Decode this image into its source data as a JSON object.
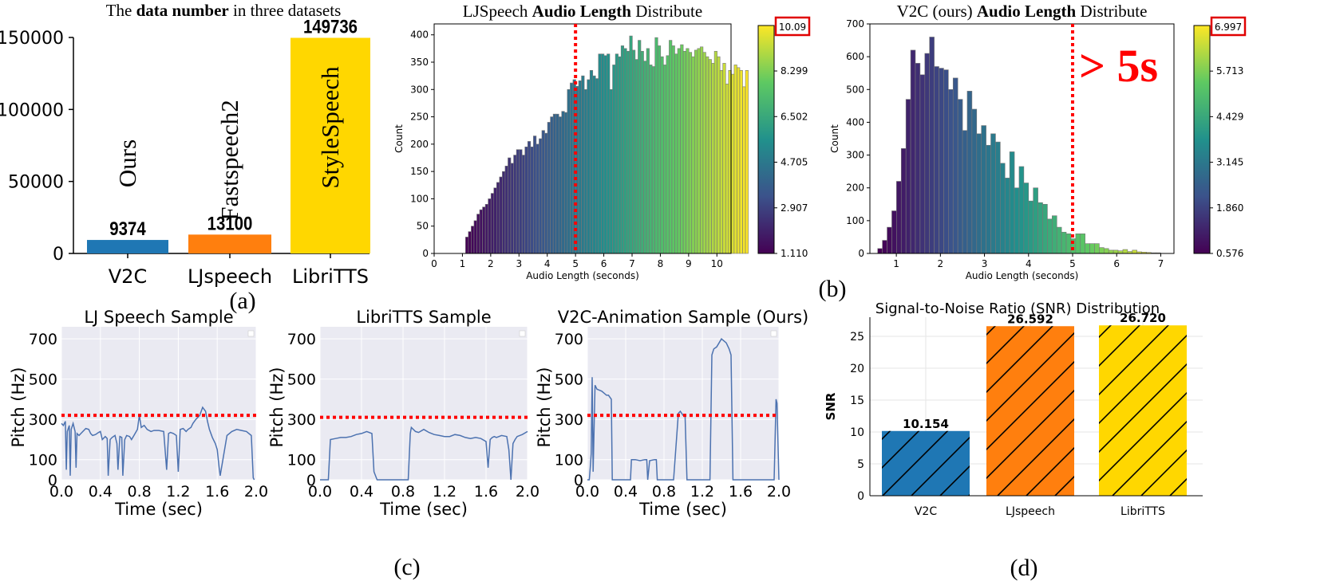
{
  "panels": {
    "a": "(a)",
    "b": "(b)",
    "c": "(c)",
    "d": "(d)"
  },
  "chart_data": [
    {
      "id": "a",
      "type": "bar",
      "title_pre": "The ",
      "title_bold": "data number",
      "title_post": " in three datasets",
      "categories": [
        "V2C",
        "LJspeech",
        "LibriTTS"
      ],
      "values": [
        9374,
        13100,
        149736
      ],
      "value_labels": [
        "9374",
        "13100",
        "149736"
      ],
      "bar_names": [
        "Ours",
        "Fastspeech2",
        "StyleSpeech"
      ],
      "colors": [
        "#1f77b4",
        "#ff7f0e",
        "#ffd700"
      ],
      "ylim": [
        0,
        150000
      ],
      "yticks": [
        0,
        50000,
        100000,
        150000
      ],
      "ytick_labels": [
        "0",
        "50000",
        "100000",
        "150000"
      ]
    },
    {
      "id": "lj_hist",
      "type": "bar",
      "title_pre": "LJSpeech ",
      "title_bold": "Audio Length",
      "title_post": " Distribute",
      "xlabel": "Audio Length (seconds)",
      "ylabel": "Count",
      "xlim": [
        0,
        10.5
      ],
      "ylim": [
        0,
        420
      ],
      "xticks": [
        0,
        1,
        2,
        3,
        4,
        5,
        6,
        7,
        8,
        9,
        10
      ],
      "xtick_labels": [
        "0",
        "1",
        "2",
        "3",
        "4",
        "5",
        "6",
        "7",
        "8",
        "9",
        "10"
      ],
      "yticks": [
        0,
        50,
        100,
        150,
        200,
        250,
        300,
        350,
        400
      ],
      "ytick_labels": [
        "0",
        "50",
        "100",
        "150",
        "200",
        "250",
        "300",
        "350",
        "400"
      ],
      "bin_start": 1.11,
      "bin_width": 0.1,
      "counts": [
        30,
        40,
        50,
        60,
        72,
        80,
        85,
        90,
        100,
        110,
        120,
        130,
        140,
        150,
        160,
        175,
        165,
        180,
        190,
        190,
        180,
        195,
        205,
        195,
        215,
        200,
        210,
        225,
        220,
        240,
        250,
        255,
        255,
        250,
        260,
        258,
        300,
        312,
        318,
        306,
        316,
        325,
        300,
        318,
        335,
        325,
        320,
        365,
        365,
        362,
        365,
        300,
        345,
        365,
        360,
        380,
        375,
        370,
        398,
        372,
        355,
        390,
        370,
        352,
        375,
        345,
        342,
        395,
        380,
        360,
        345,
        362,
        390,
        380,
        365,
        375,
        382,
        370,
        375,
        368,
        360,
        372,
        375,
        378,
        368,
        360,
        355,
        348,
        370,
        360,
        335,
        348,
        310,
        335,
        328,
        345,
        340,
        335,
        305,
        335
      ],
      "cutoff": 5,
      "colorbar_ticks": [
        1.11,
        2.907,
        4.705,
        6.502,
        8.299
      ],
      "colorbar_tick_labels": [
        "1.110",
        "2.907",
        "4.705",
        "6.502",
        "8.299"
      ],
      "colorbar_max": "10.09"
    },
    {
      "id": "v2c_hist",
      "type": "bar",
      "title_pre": "V2C (ours) ",
      "title_bold": "Audio Length",
      "title_post": " Distribute",
      "xlabel": "Audio Length (seconds)",
      "ylabel": "Count",
      "xlim": [
        0.4,
        7.3
      ],
      "ylim": [
        0,
        700
      ],
      "xticks": [
        1,
        2,
        3,
        4,
        5,
        6,
        7
      ],
      "xtick_labels": [
        "1",
        "2",
        "3",
        "4",
        "5",
        "6",
        "7"
      ],
      "yticks": [
        0,
        100,
        200,
        300,
        400,
        500,
        600,
        700
      ],
      "ytick_labels": [
        "0",
        "100",
        "200",
        "300",
        "400",
        "500",
        "600",
        "700"
      ],
      "bin_start": 0.576,
      "bin_width": 0.107,
      "counts": [
        15,
        40,
        80,
        130,
        220,
        320,
        470,
        620,
        580,
        545,
        610,
        660,
        570,
        565,
        560,
        500,
        535,
        470,
        375,
        495,
        440,
        365,
        390,
        330,
        365,
        340,
        275,
        230,
        310,
        200,
        265,
        215,
        160,
        200,
        155,
        150,
        105,
        115,
        80,
        65,
        60,
        45,
        60,
        60,
        30,
        30,
        30,
        18,
        15,
        10,
        10,
        8,
        12,
        6,
        10,
        5,
        4,
        3,
        2,
        2
      ],
      "cutoff": 5,
      "annotation": "> 5s",
      "colorbar_ticks": [
        0.576,
        1.86,
        3.145,
        4.429,
        5.713
      ],
      "colorbar_tick_labels": [
        "0.576",
        "1.860",
        "3.145",
        "4.429",
        "5.713"
      ],
      "colorbar_max": "6.997"
    },
    {
      "id": "pitch_lj",
      "type": "line",
      "title": "LJ Speech Sample",
      "xlabel": "Time (sec)",
      "ylabel": "Pitch (Hz)",
      "xlim": [
        0,
        2.0
      ],
      "ylim": [
        0,
        760
      ],
      "xticks": [
        0,
        0.4,
        0.8,
        1.2,
        1.6,
        2.0
      ],
      "xtick_labels": [
        "0.0",
        "0.4",
        "0.8",
        "1.2",
        "1.6",
        "2.0"
      ],
      "yticks": [
        0,
        100,
        300,
        500,
        700
      ],
      "ytick_labels": [
        "0",
        "100",
        "300",
        "500",
        "700"
      ],
      "threshold": 320,
      "x": [
        0.0,
        0.02,
        0.04,
        0.05,
        0.06,
        0.08,
        0.09,
        0.1,
        0.12,
        0.14,
        0.15,
        0.16,
        0.18,
        0.2,
        0.22,
        0.25,
        0.28,
        0.3,
        0.32,
        0.35,
        0.38,
        0.4,
        0.42,
        0.45,
        0.47,
        0.48,
        0.5,
        0.52,
        0.55,
        0.57,
        0.58,
        0.6,
        0.62,
        0.63,
        0.65,
        0.67,
        0.7,
        0.72,
        0.75,
        0.78,
        0.8,
        0.82,
        0.85,
        0.88,
        0.92,
        0.95,
        1.0,
        1.05,
        1.08,
        1.1,
        1.12,
        1.15,
        1.18,
        1.2,
        1.22,
        1.25,
        1.28,
        1.3,
        1.33,
        1.35,
        1.38,
        1.42,
        1.45,
        1.48,
        1.5,
        1.52,
        1.55,
        1.58,
        1.6,
        1.62,
        1.63,
        1.7,
        1.75,
        1.8,
        1.85,
        1.9,
        1.95,
        1.97,
        1.98
      ],
      "y": [
        280,
        270,
        290,
        50,
        240,
        270,
        20,
        250,
        280,
        240,
        60,
        230,
        220,
        230,
        240,
        255,
        250,
        230,
        220,
        225,
        235,
        240,
        200,
        215,
        205,
        20,
        200,
        210,
        220,
        180,
        50,
        215,
        210,
        20,
        200,
        220,
        215,
        200,
        225,
        250,
        320,
        260,
        270,
        250,
        240,
        245,
        245,
        240,
        50,
        230,
        235,
        230,
        220,
        40,
        250,
        255,
        240,
        250,
        260,
        280,
        300,
        320,
        360,
        340,
        290,
        250,
        210,
        180,
        150,
        60,
        20,
        220,
        240,
        250,
        245,
        240,
        220,
        10,
        0
      ]
    },
    {
      "id": "pitch_libri",
      "type": "line",
      "title": "LibriTTS Sample",
      "xlabel": "Time (sec)",
      "ylabel": "Pitch (Hz)",
      "xlim": [
        0,
        2.0
      ],
      "ylim": [
        0,
        760
      ],
      "xticks": [
        0,
        0.4,
        0.8,
        1.2,
        1.6,
        2.0
      ],
      "xtick_labels": [
        "0.0",
        "0.4",
        "0.8",
        "1.2",
        "1.6",
        "2.0"
      ],
      "yticks": [
        0,
        100,
        300,
        500,
        700
      ],
      "ytick_labels": [
        "0",
        "100",
        "300",
        "500",
        "700"
      ],
      "threshold": 310,
      "x": [
        0.0,
        0.03,
        0.05,
        0.08,
        0.1,
        0.15,
        0.2,
        0.25,
        0.3,
        0.35,
        0.4,
        0.45,
        0.5,
        0.52,
        0.55,
        0.6,
        0.65,
        0.7,
        0.75,
        0.8,
        0.85,
        0.87,
        0.88,
        0.92,
        0.95,
        1.0,
        1.05,
        1.1,
        1.15,
        1.2,
        1.25,
        1.3,
        1.35,
        1.4,
        1.45,
        1.5,
        1.55,
        1.6,
        1.62,
        1.64,
        1.66,
        1.68,
        1.7,
        1.75,
        1.8,
        1.82,
        1.84,
        1.86,
        1.88,
        1.9,
        1.95,
        2.0
      ],
      "y": [
        0,
        0,
        0,
        0,
        200,
        205,
        210,
        210,
        215,
        225,
        230,
        240,
        230,
        40,
        0,
        0,
        0,
        0,
        0,
        0,
        0,
        230,
        260,
        240,
        235,
        250,
        235,
        225,
        220,
        215,
        215,
        225,
        220,
        210,
        205,
        210,
        205,
        190,
        60,
        200,
        210,
        215,
        210,
        220,
        215,
        150,
        0,
        180,
        200,
        215,
        225,
        240
      ]
    },
    {
      "id": "pitch_v2c",
      "type": "line",
      "title": "V2C-Animation Sample (Ours)",
      "xlabel": "Time (sec)",
      "ylabel": "Pitch (Hz)",
      "xlim": [
        0,
        2.0
      ],
      "ylim": [
        0,
        760
      ],
      "xticks": [
        0,
        0.4,
        0.8,
        1.2,
        1.6,
        2.0
      ],
      "xtick_labels": [
        "0.0",
        "0.4",
        "0.8",
        "1.2",
        "1.6",
        "2.0"
      ],
      "yticks": [
        0,
        100,
        300,
        500,
        700
      ],
      "ytick_labels": [
        "0",
        "100",
        "300",
        "500",
        "700"
      ],
      "threshold": 320,
      "x": [
        0.0,
        0.02,
        0.03,
        0.04,
        0.05,
        0.06,
        0.08,
        0.1,
        0.15,
        0.2,
        0.22,
        0.25,
        0.26,
        0.3,
        0.4,
        0.45,
        0.46,
        0.5,
        0.55,
        0.6,
        0.62,
        0.63,
        0.65,
        0.7,
        0.72,
        0.73,
        0.8,
        0.9,
        0.95,
        0.97,
        1.0,
        1.02,
        1.04,
        1.06,
        1.1,
        1.2,
        1.28,
        1.3,
        1.32,
        1.35,
        1.4,
        1.45,
        1.48,
        1.5,
        1.52,
        1.53,
        1.55,
        1.6,
        1.7,
        1.8,
        1.9,
        1.95,
        1.97,
        1.98,
        2.0
      ],
      "y": [
        0,
        0,
        60,
        130,
        510,
        40,
        470,
        450,
        440,
        420,
        420,
        400,
        0,
        0,
        0,
        0,
        100,
        100,
        95,
        100,
        100,
        0,
        95,
        100,
        100,
        0,
        0,
        0,
        330,
        340,
        320,
        320,
        0,
        0,
        0,
        0,
        0,
        620,
        650,
        660,
        700,
        680,
        650,
        620,
        0,
        0,
        0,
        0,
        0,
        0,
        0,
        0,
        400,
        380,
        0
      ]
    },
    {
      "id": "d",
      "type": "bar",
      "title": "Signal-to-Noise Ratio (SNR) Distribution",
      "ylabel": "SNR",
      "categories": [
        "V2C",
        "LJspeech",
        "LibriTTS"
      ],
      "values": [
        10.154,
        26.592,
        26.72
      ],
      "value_labels": [
        "10.154",
        "26.592",
        "26.720"
      ],
      "colors": [
        "#1f77b4",
        "#ff7f0e",
        "#ffd700"
      ],
      "ylim": [
        0,
        28
      ],
      "yticks": [
        0,
        5,
        10,
        15,
        20,
        25
      ],
      "ytick_labels": [
        "0",
        "5",
        "10",
        "15",
        "20",
        "25"
      ]
    }
  ]
}
